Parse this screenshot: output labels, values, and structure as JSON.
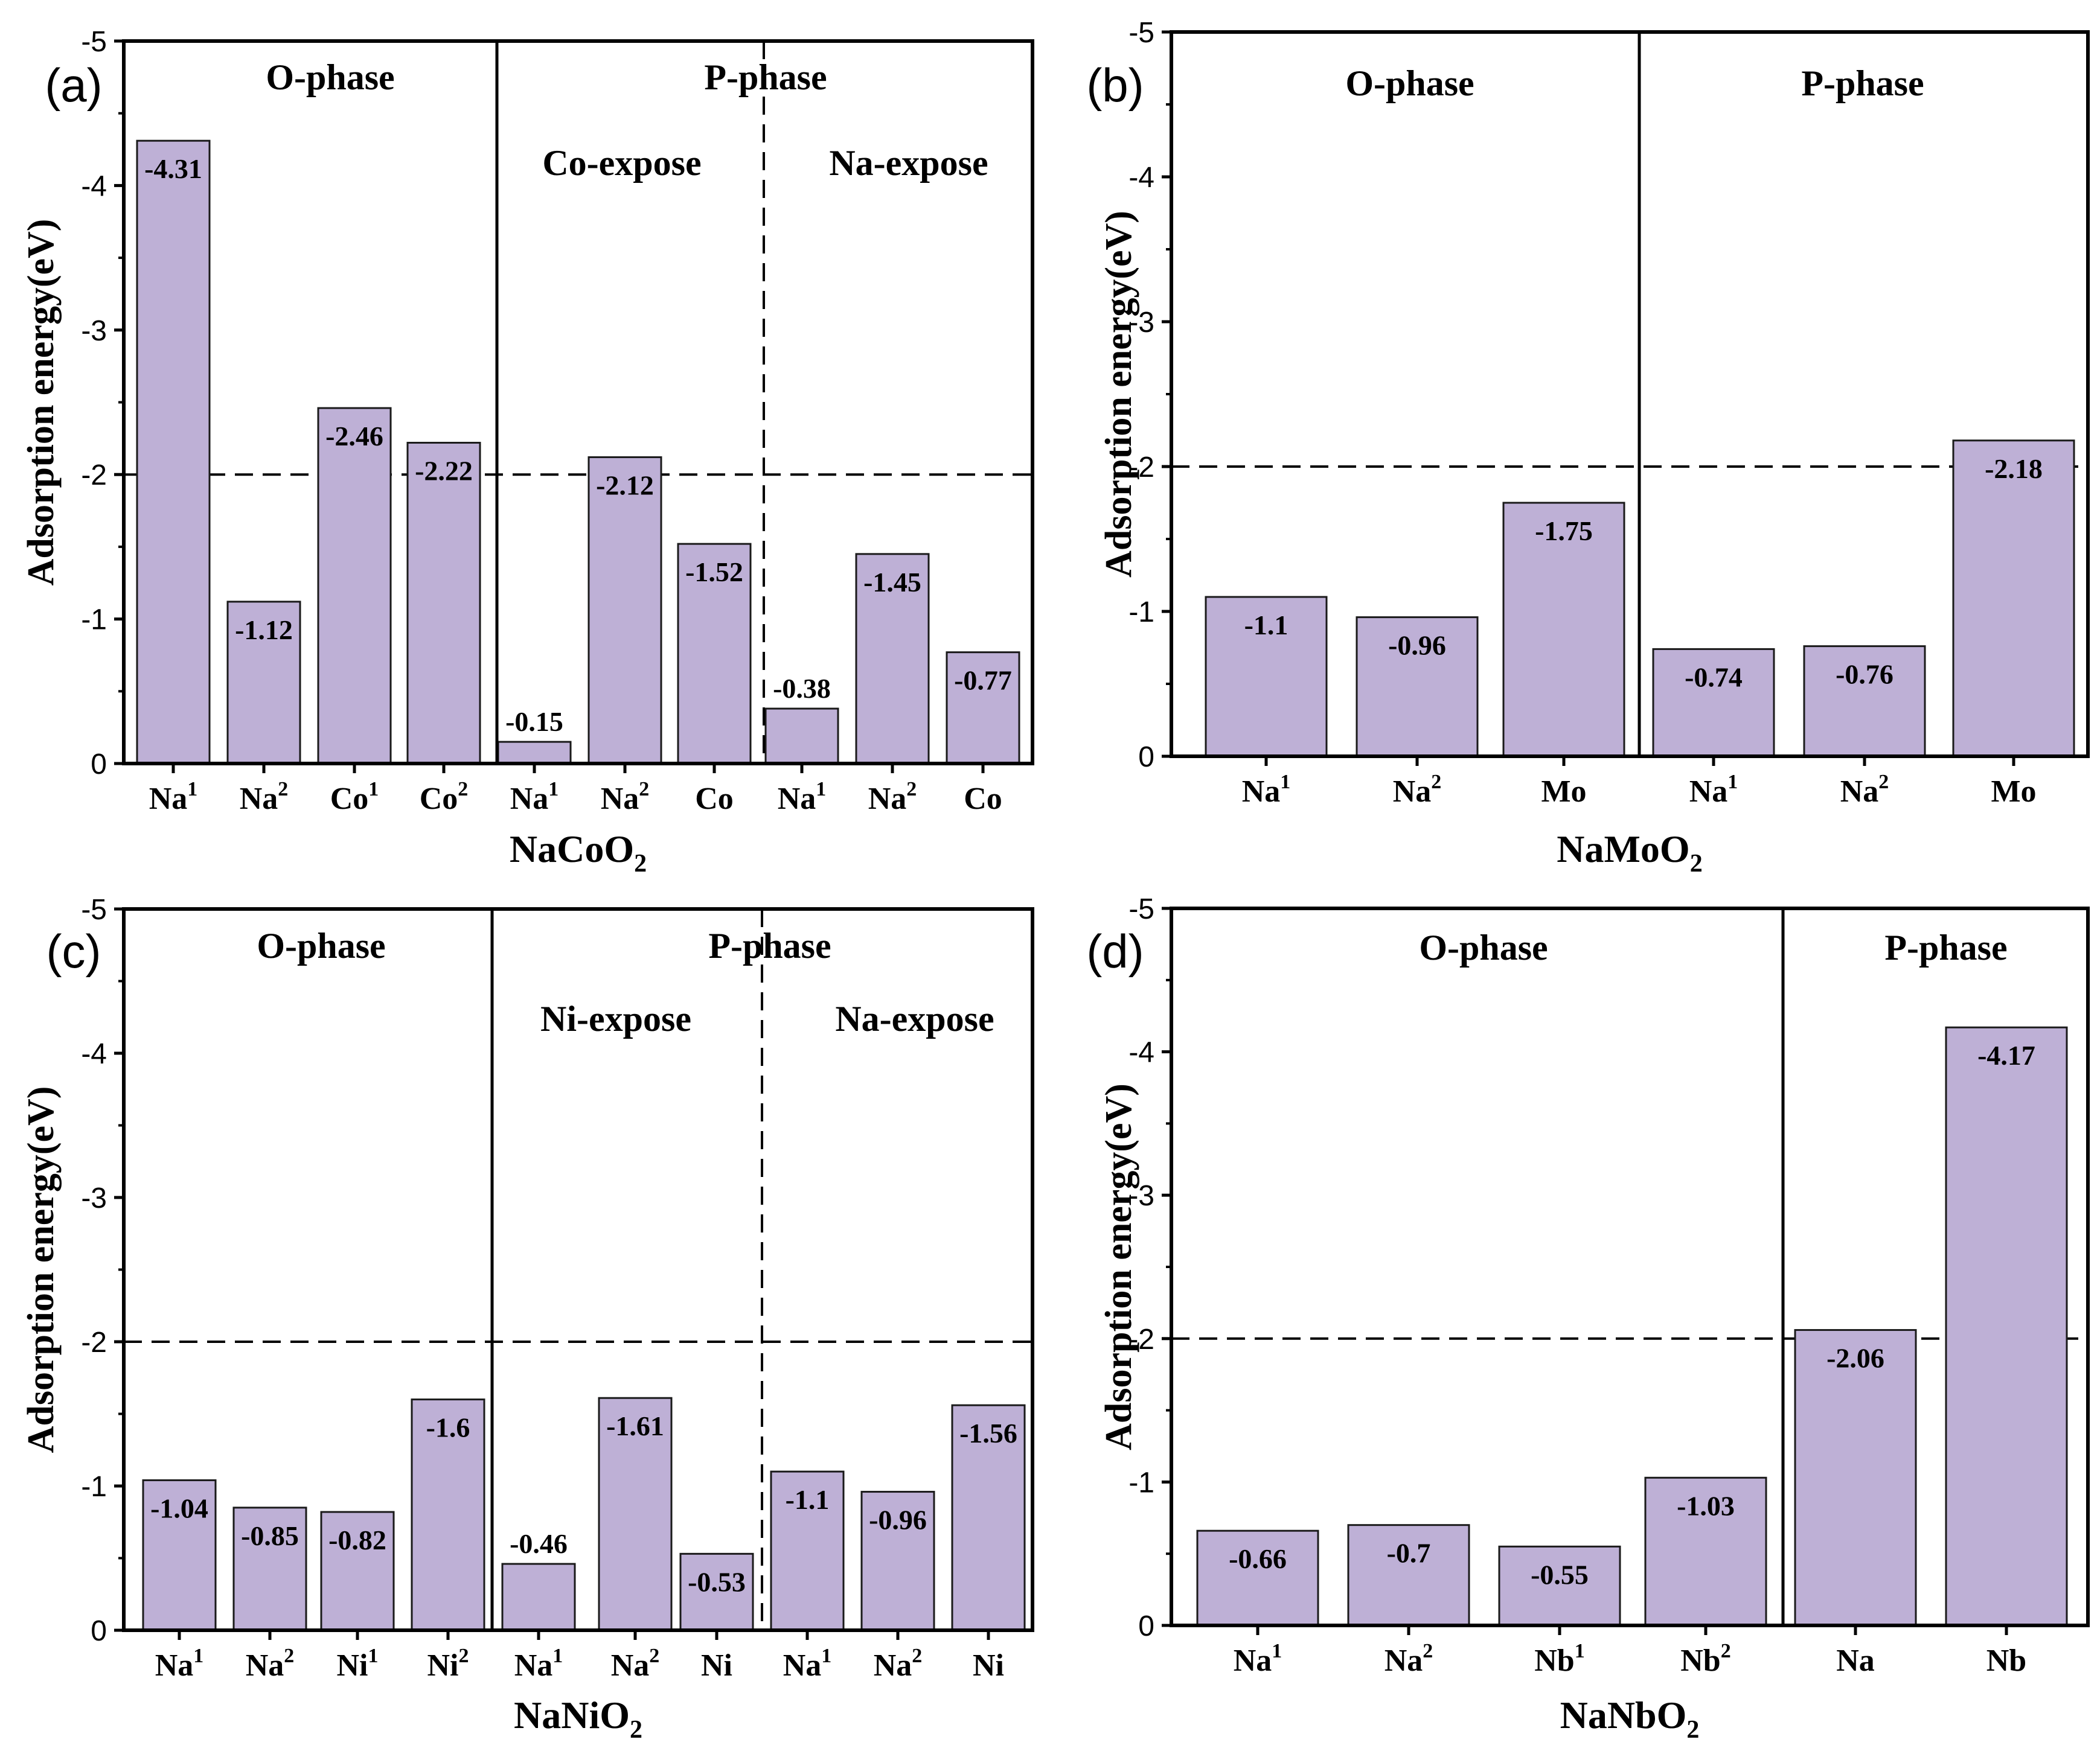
{
  "colors": {
    "bar_fill": "#beb0d6",
    "bar_stroke": "#1a1a1a",
    "axis": "#000000"
  },
  "chart_data": [
    {
      "type": "bar",
      "panel_label": "(a)",
      "compound": "NaCoO",
      "compound_sub": "2",
      "ylabel": "Adsorption energy(eV)",
      "ylim": [
        0,
        -5
      ],
      "yticks": [
        0,
        -1,
        -2,
        -3,
        -4,
        -5
      ],
      "ytick_labels": [
        "0",
        "-1",
        "-2",
        "-3",
        "-4",
        "-5"
      ],
      "reference_line": -2,
      "phase_labels": [
        "O-phase",
        "P-phase"
      ],
      "sub_labels": [
        "Co-expose",
        "Na-expose"
      ],
      "categories": [
        {
          "base": "Na",
          "sup": "1"
        },
        {
          "base": "Na",
          "sup": "2"
        },
        {
          "base": "Co",
          "sup": "1"
        },
        {
          "base": "Co",
          "sup": "2"
        },
        {
          "base": "Na",
          "sup": "1"
        },
        {
          "base": "Na",
          "sup": "2"
        },
        {
          "base": "Co",
          "sup": ""
        },
        {
          "base": "Na",
          "sup": "1"
        },
        {
          "base": "Na",
          "sup": "2"
        },
        {
          "base": "Co",
          "sup": ""
        }
      ],
      "values": [
        -4.31,
        -1.12,
        -2.46,
        -2.22,
        -0.15,
        -2.12,
        -1.52,
        -0.38,
        -1.45,
        -0.77
      ],
      "value_labels": [
        "-4.31",
        "-1.12",
        "-2.46",
        "-2.22",
        "-0.15",
        "-2.12",
        "-1.52",
        "-0.38",
        "-1.45",
        "-0.77"
      ]
    },
    {
      "type": "bar",
      "panel_label": "(b)",
      "compound": "NaMoO",
      "compound_sub": "2",
      "ylabel": "Adsorption energy(eV)",
      "ylim": [
        0,
        -5
      ],
      "yticks": [
        0,
        -1,
        -2,
        -3,
        -4,
        -5
      ],
      "ytick_labels": [
        "0",
        "-1",
        "-2",
        "-3",
        "-4",
        "-5"
      ],
      "reference_line": -2,
      "phase_labels": [
        "O-phase",
        "P-phase"
      ],
      "sub_labels": [],
      "categories": [
        {
          "base": "Na",
          "sup": "1"
        },
        {
          "base": "Na",
          "sup": "2"
        },
        {
          "base": "Mo",
          "sup": ""
        },
        {
          "base": "Na",
          "sup": "1"
        },
        {
          "base": "Na",
          "sup": "2"
        },
        {
          "base": "Mo",
          "sup": ""
        }
      ],
      "values": [
        -1.1,
        -0.96,
        -1.75,
        -0.74,
        -0.76,
        -2.18
      ],
      "value_labels": [
        "-1.1",
        "-0.96",
        "-1.75",
        "-0.74",
        "-0.76",
        "-2.18"
      ]
    },
    {
      "type": "bar",
      "panel_label": "(c)",
      "compound": "NaNiO",
      "compound_sub": "2",
      "ylabel": "Adsorption energy(eV)",
      "ylim": [
        0,
        -5
      ],
      "yticks": [
        0,
        -1,
        -2,
        -3,
        -4,
        -5
      ],
      "ytick_labels": [
        "0",
        "-1",
        "-2",
        "-3",
        "-4",
        "-5"
      ],
      "reference_line": -2,
      "phase_labels": [
        "O-phase",
        "P-phase"
      ],
      "sub_labels": [
        "Ni-expose",
        "Na-expose"
      ],
      "categories": [
        {
          "base": "Na",
          "sup": "1"
        },
        {
          "base": "Na",
          "sup": "2"
        },
        {
          "base": "Ni",
          "sup": "1"
        },
        {
          "base": "Ni",
          "sup": "2"
        },
        {
          "base": "Na",
          "sup": "1"
        },
        {
          "base": "Na",
          "sup": "2"
        },
        {
          "base": "Ni",
          "sup": ""
        },
        {
          "base": "Na",
          "sup": "1"
        },
        {
          "base": "Na",
          "sup": "2"
        },
        {
          "base": "Ni",
          "sup": ""
        }
      ],
      "values": [
        -1.04,
        -0.85,
        -0.82,
        -1.6,
        -0.46,
        -1.61,
        -0.53,
        -1.1,
        -0.96,
        -1.56
      ],
      "value_labels": [
        "-1.04",
        "-0.85",
        "-0.82",
        "-1.6",
        "-0.46",
        "-1.61",
        "-0.53",
        "-1.1",
        "-0.96",
        "-1.56"
      ]
    },
    {
      "type": "bar",
      "panel_label": "(d)",
      "compound": "NaNbO",
      "compound_sub": "2",
      "ylabel": "Adsorption energy(eV)",
      "ylim": [
        0,
        -5
      ],
      "yticks": [
        0,
        -1,
        -2,
        -3,
        -4,
        -5
      ],
      "ytick_labels": [
        "0",
        "-1",
        "-2",
        "-3",
        "-4",
        "-5"
      ],
      "reference_line": -2,
      "phase_labels": [
        "O-phase",
        "P-phase"
      ],
      "sub_labels": [],
      "categories": [
        {
          "base": "Na",
          "sup": "1"
        },
        {
          "base": "Na",
          "sup": "2"
        },
        {
          "base": "Nb",
          "sup": "1"
        },
        {
          "base": "Nb",
          "sup": "2"
        },
        {
          "base": "Na",
          "sup": ""
        },
        {
          "base": "Nb",
          "sup": ""
        }
      ],
      "values": [
        -0.66,
        -0.7,
        -0.55,
        -1.03,
        -2.06,
        -4.17
      ],
      "value_labels": [
        "-0.66",
        "-0.7",
        "-0.55",
        "-1.03",
        "-2.06",
        "-4.17"
      ]
    }
  ]
}
